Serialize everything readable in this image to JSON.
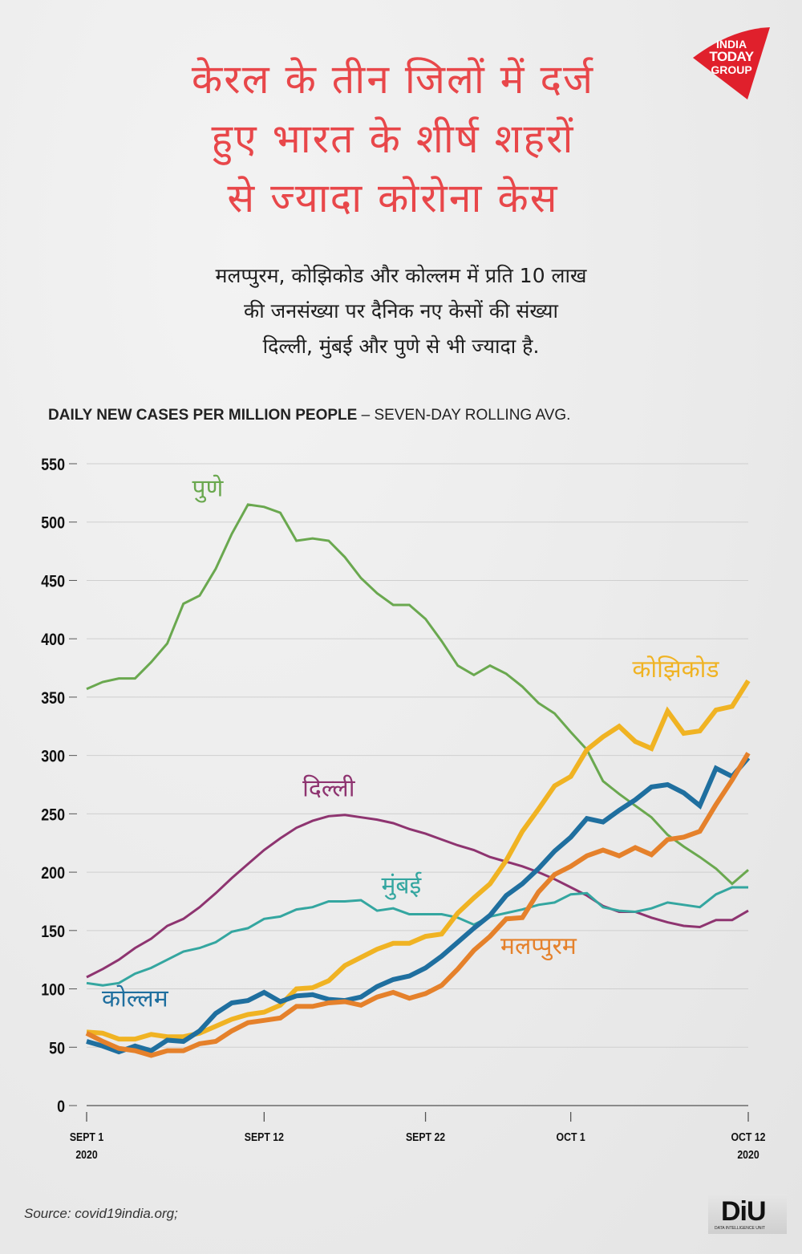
{
  "title": {
    "lines": [
      "केरल के तीन जिलों में दर्ज",
      "हुए भारत के शीर्ष शहरों",
      "से ज्यादा कोरोना केस"
    ],
    "color": "#e8474a"
  },
  "logo": {
    "lines": [
      "INDIA",
      "TODAY",
      "GROUP"
    ],
    "color": "#e0202c"
  },
  "subtitle": {
    "lines": [
      "मलप्पुरम, कोझिकोड और कोल्लम में प्रति 10 लाख",
      "की जनसंख्या पर दैनिक नए केसों की संख्या",
      "दिल्ली, मुंबई और पुणे से भी ज्यादा है."
    ]
  },
  "chart_heading": {
    "bold": "DAILY NEW CASES PER MILLION PEOPLE",
    "light": " – SEVEN-DAY ROLLING AVG."
  },
  "chart_data": {
    "type": "line",
    "title": "DAILY NEW CASES PER MILLION PEOPLE – SEVEN-DAY ROLLING AVG.",
    "xlabel": "",
    "ylabel": "",
    "ylim": [
      0,
      550
    ],
    "yticks": [
      "0",
      "50",
      "100",
      "150",
      "200",
      "250",
      "300",
      "350",
      "400",
      "450",
      "500",
      "550"
    ],
    "ytick_values": [
      0,
      50,
      100,
      150,
      200,
      250,
      300,
      350,
      400,
      450,
      500,
      550
    ],
    "x_day_range": [
      0,
      41
    ],
    "xticks": [
      {
        "day": 0,
        "label": "SEPT 1",
        "label2": "2020"
      },
      {
        "day": 11,
        "label": "SEPT 12",
        "label2": ""
      },
      {
        "day": 21,
        "label": "SEPT 22",
        "label2": ""
      },
      {
        "day": 30,
        "label": "OCT 1",
        "label2": ""
      },
      {
        "day": 41,
        "label": "OCT 12",
        "label2": "2020"
      }
    ],
    "grid": true,
    "series": [
      {
        "name": "पुणे",
        "key": "pune",
        "color": "#6aa84f",
        "width": 3,
        "values": [
          357,
          363,
          366,
          366,
          380,
          396,
          430,
          437,
          460,
          490,
          515,
          513,
          508,
          484,
          486,
          484,
          470,
          452,
          439,
          429,
          429,
          417,
          398,
          377,
          369,
          377,
          370,
          359,
          345,
          336,
          320,
          305,
          278,
          267,
          257,
          247,
          232,
          222,
          213,
          203,
          190,
          202
        ]
      },
      {
        "name": "दिल्ली",
        "key": "delhi",
        "color": "#8e3470",
        "width": 3,
        "values": [
          110,
          117,
          125,
          135,
          143,
          154,
          160,
          170,
          182,
          195,
          207,
          219,
          229,
          238,
          244,
          248,
          249,
          247,
          245,
          242,
          237,
          233,
          228,
          223,
          219,
          213,
          209,
          205,
          200,
          194,
          187,
          180,
          171,
          166,
          166,
          161,
          157,
          154,
          153,
          159,
          159,
          167
        ]
      },
      {
        "name": "मुंबई",
        "key": "mumbai",
        "color": "#34a6a0",
        "width": 3,
        "values": [
          105,
          103,
          105,
          113,
          118,
          125,
          132,
          135,
          140,
          149,
          152,
          160,
          162,
          168,
          170,
          175,
          175,
          176,
          167,
          169,
          164,
          164,
          164,
          161,
          155,
          162,
          165,
          168,
          172,
          174,
          181,
          182,
          170,
          167,
          166,
          169,
          174,
          172,
          170,
          181,
          187,
          187
        ]
      },
      {
        "name": "कोझिकोड",
        "key": "kozhikode",
        "color": "#f0b323",
        "width": 6,
        "values": [
          63,
          62,
          57,
          57,
          61,
          59,
          59,
          62,
          68,
          74,
          78,
          80,
          86,
          100,
          101,
          107,
          120,
          127,
          134,
          139,
          139,
          145,
          147,
          165,
          178,
          190,
          210,
          235,
          254,
          274,
          282,
          305,
          316,
          325,
          312,
          306,
          338,
          319,
          321,
          339,
          342,
          364
        ]
      },
      {
        "name": "कोल्लम",
        "key": "kollam",
        "color": "#1f6f9f",
        "width": 6,
        "values": [
          55,
          51,
          46,
          51,
          47,
          56,
          55,
          64,
          79,
          88,
          90,
          97,
          89,
          94,
          95,
          91,
          90,
          93,
          102,
          108,
          111,
          118,
          128,
          140,
          152,
          163,
          180,
          190,
          203,
          218,
          230,
          246,
          243,
          253,
          262,
          273,
          275,
          268,
          257,
          289,
          282,
          298
        ]
      },
      {
        "name": "मलप्पुरम",
        "key": "malappuram",
        "color": "#e5812b",
        "width": 6,
        "values": [
          62,
          55,
          49,
          47,
          43,
          47,
          47,
          53,
          55,
          64,
          71,
          73,
          75,
          85,
          85,
          88,
          89,
          86,
          93,
          97,
          92,
          96,
          103,
          117,
          133,
          145,
          160,
          161,
          183,
          198,
          205,
          214,
          219,
          214,
          221,
          215,
          228,
          230,
          235,
          258,
          279,
          302
        ]
      }
    ],
    "annotations": [
      {
        "series": "pune",
        "text": "पुणे",
        "day": 7.5,
        "value": 522
      },
      {
        "series": "delhi",
        "text": "दिल्ली",
        "day": 15,
        "value": 265
      },
      {
        "series": "mumbai",
        "text": "मुंबई",
        "day": 19.5,
        "value": 182
      },
      {
        "series": "kozhikode",
        "text": "कोझिकोड",
        "day": 36.5,
        "value": 367
      },
      {
        "series": "kollam",
        "text": "कोल्लम",
        "day": 3,
        "value": 85
      },
      {
        "series": "malappuram",
        "text": "मलप्पुरम",
        "day": 28,
        "value": 130
      }
    ]
  },
  "source": "Source: covid19india.org;",
  "diu_logo": {
    "main": "DiU",
    "sub": "DATA INTELLIGENCE UNIT"
  }
}
